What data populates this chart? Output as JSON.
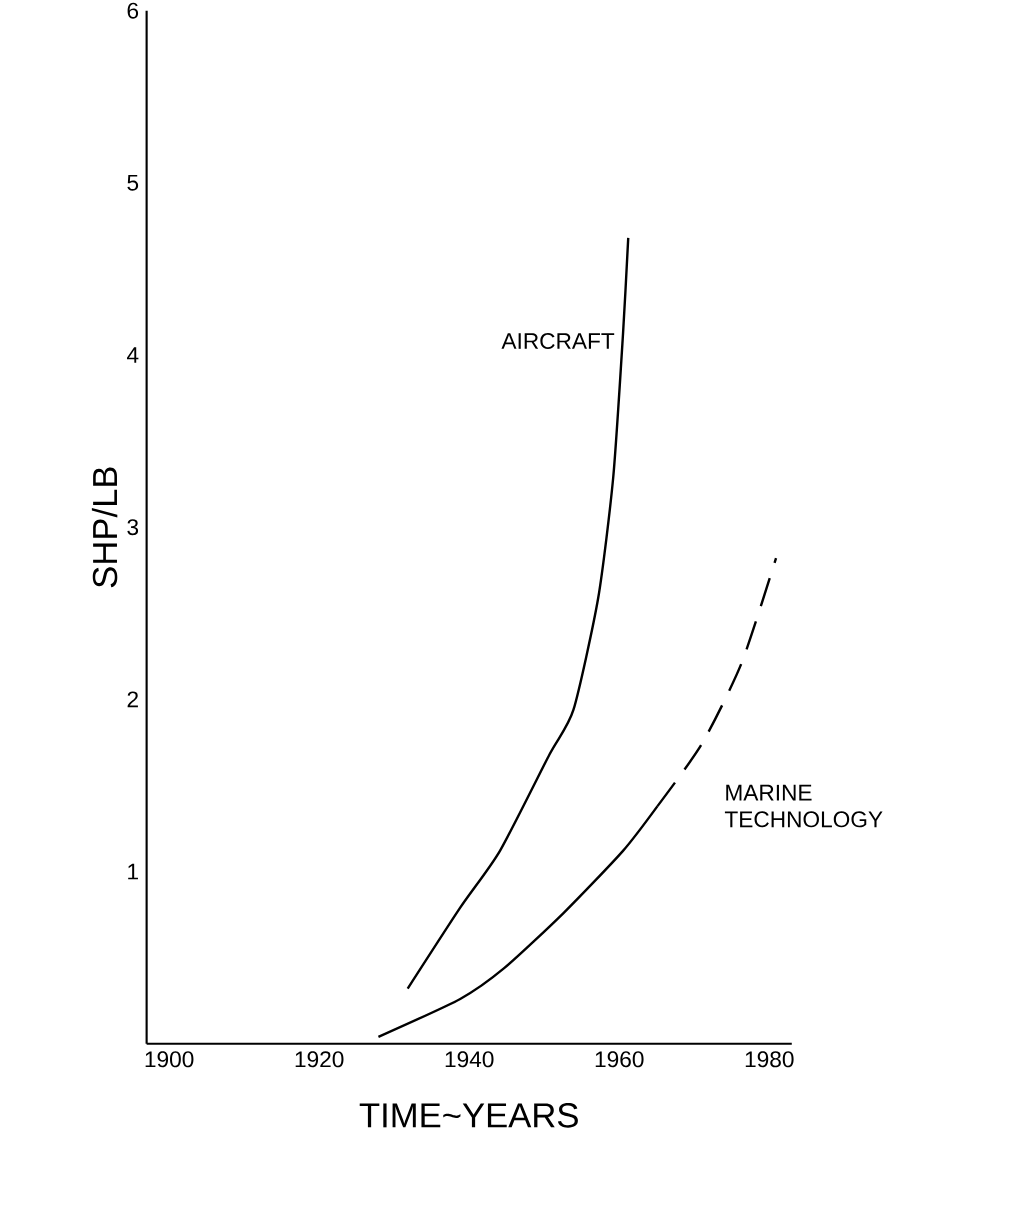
{
  "chart_data": {
    "type": "line",
    "xlabel": "TIME~YEARS",
    "ylabel": "SHP/LB",
    "xlim": [
      1897,
      1983
    ],
    "xticks": [
      1900,
      1920,
      1940,
      1960,
      1980
    ],
    "ylim": [
      0,
      6
    ],
    "yticks": [
      1,
      2,
      3,
      4,
      5,
      6
    ],
    "grid": false,
    "series": [
      {
        "name": "AIRCRAFT",
        "color": "#000000",
        "line_style": "solid",
        "x": [
          1931.8,
          1938.8,
          1944.1,
          1950.7,
          1953.9,
          1957.2,
          1959.2,
          1960.5,
          1961.2
        ],
        "values": [
          0.32,
          0.79,
          1.12,
          1.68,
          1.94,
          2.59,
          3.29,
          4.12,
          4.68
        ]
      },
      {
        "name": "MARINE TECHNOLOGY",
        "color": "#000000",
        "line_style": "solid",
        "x": [
          1927.9,
          1938.8,
          1944.7,
          1952.6,
          1960.5,
          1965.1
        ],
        "values": [
          0.04,
          0.26,
          0.44,
          0.76,
          1.12,
          1.38
        ]
      },
      {
        "color": "#000000",
        "line_style": "dashed",
        "x": [
          1965.1,
          1971,
          1976.3,
          1980.9
        ],
        "values": [
          1.38,
          1.74,
          2.21,
          2.82
        ]
      }
    ]
  }
}
